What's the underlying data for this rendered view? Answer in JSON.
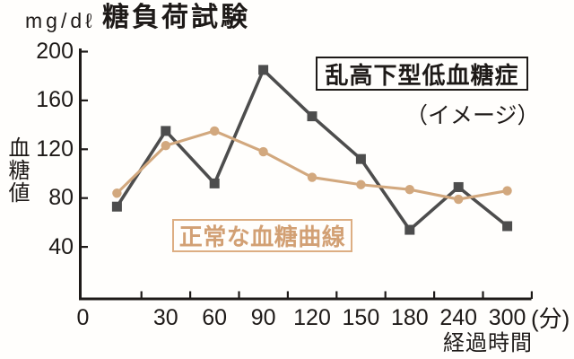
{
  "chart_data": {
    "type": "line",
    "title": "糖負荷試験",
    "unit_label": "mg/dℓ",
    "ylabel": "血糖値",
    "xlabel": "経過時間",
    "x_unit_label": "(分)",
    "x_tick_labels": [
      "0",
      "30",
      "60",
      "90",
      "120",
      "150",
      "180",
      "240",
      "300"
    ],
    "y_tick_labels": [
      "40",
      "80",
      "120",
      "160",
      "200"
    ],
    "y_ticks": [
      40,
      80,
      120,
      160,
      200
    ],
    "ylim": [
      0,
      205
    ],
    "grid": false,
    "legend_position": "inline-annotations",
    "axis_color": "#1e1a18",
    "series": [
      {
        "name": "乱高下型低血糖症",
        "note": "（イメージ）",
        "color": "#4d4d4d",
        "marker": "square",
        "x": [
          0,
          30,
          60,
          90,
          120,
          150,
          180,
          240,
          300
        ],
        "values": [
          73,
          135,
          92,
          185,
          147,
          112,
          54,
          89,
          57
        ]
      },
      {
        "name": "正常な血糖曲線",
        "color": "#d2a87e",
        "marker": "circle",
        "x": [
          0,
          30,
          60,
          90,
          120,
          150,
          180,
          240,
          300
        ],
        "values": [
          84,
          123,
          135,
          118,
          97,
          91,
          87,
          79,
          86
        ]
      }
    ]
  }
}
